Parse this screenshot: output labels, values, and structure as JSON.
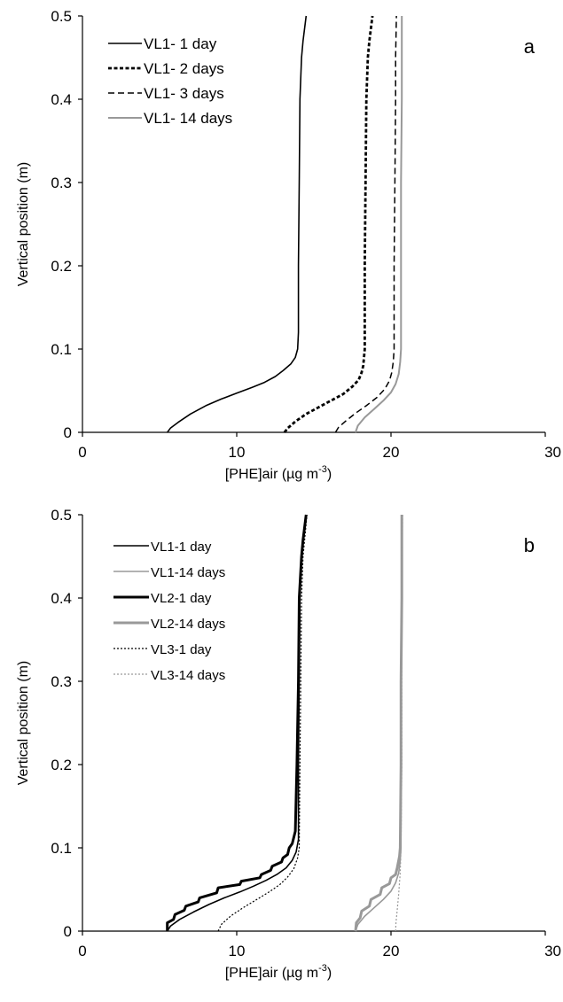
{
  "chart_data": [
    {
      "type": "line",
      "panel_label": "a",
      "xlabel": "[PHE]air (µg m",
      "xlabel_sup": "-3",
      "xlabel_end": ")",
      "ylabel": "Vertical position (m)",
      "xlim": [
        0,
        30
      ],
      "ylim": [
        0,
        0.5
      ],
      "xticks": [
        0,
        10,
        20,
        30
      ],
      "yticks": [
        0,
        0.1,
        0.2,
        0.3,
        0.4,
        0.5
      ],
      "ytick_labels": [
        "0",
        "0.1",
        "0.2",
        "0.3",
        "0.4",
        "0.5"
      ],
      "grid": false,
      "legend_position": "top-left",
      "series": [
        {
          "name": "VL1- 1 day",
          "color": "#000000",
          "style": "solid",
          "width": 1.6,
          "points": [
            [
              5.5,
              0
            ],
            [
              5.7,
              0.005
            ],
            [
              6.2,
              0.012
            ],
            [
              7.0,
              0.022
            ],
            [
              8.0,
              0.032
            ],
            [
              9.0,
              0.04
            ],
            [
              10.0,
              0.047
            ],
            [
              11.0,
              0.054
            ],
            [
              11.8,
              0.06
            ],
            [
              12.5,
              0.067
            ],
            [
              13.0,
              0.074
            ],
            [
              13.5,
              0.082
            ],
            [
              13.8,
              0.09
            ],
            [
              13.95,
              0.1
            ],
            [
              14.0,
              0.12
            ],
            [
              14.0,
              0.2
            ],
            [
              14.05,
              0.3
            ],
            [
              14.1,
              0.4
            ],
            [
              14.2,
              0.45
            ],
            [
              14.3,
              0.47
            ],
            [
              14.5,
              0.5
            ]
          ]
        },
        {
          "name": "VL1- 2 days",
          "color": "#000000",
          "style": "dotted-bold",
          "width": 2.8,
          "points": [
            [
              13.1,
              0
            ],
            [
              13.3,
              0.005
            ],
            [
              13.8,
              0.013
            ],
            [
              14.5,
              0.022
            ],
            [
              15.3,
              0.03
            ],
            [
              16.1,
              0.038
            ],
            [
              16.9,
              0.046
            ],
            [
              17.5,
              0.055
            ],
            [
              17.9,
              0.063
            ],
            [
              18.1,
              0.072
            ],
            [
              18.2,
              0.08
            ],
            [
              18.3,
              0.1
            ],
            [
              18.3,
              0.2
            ],
            [
              18.35,
              0.3
            ],
            [
              18.4,
              0.4
            ],
            [
              18.5,
              0.45
            ],
            [
              18.6,
              0.47
            ],
            [
              18.8,
              0.5
            ]
          ]
        },
        {
          "name": "VL1- 3 days",
          "color": "#000000",
          "style": "dashed",
          "width": 1.5,
          "points": [
            [
              16.4,
              0
            ],
            [
              16.6,
              0.006
            ],
            [
              17.1,
              0.014
            ],
            [
              17.7,
              0.023
            ],
            [
              18.4,
              0.032
            ],
            [
              19.1,
              0.042
            ],
            [
              19.6,
              0.052
            ],
            [
              19.9,
              0.062
            ],
            [
              20.05,
              0.072
            ],
            [
              20.15,
              0.085
            ],
            [
              20.2,
              0.1
            ],
            [
              20.2,
              0.2
            ],
            [
              20.25,
              0.3
            ],
            [
              20.3,
              0.4
            ],
            [
              20.3,
              0.45
            ],
            [
              20.35,
              0.5
            ]
          ]
        },
        {
          "name": "VL1- 14 days",
          "color": "#999999",
          "style": "solid",
          "width": 2,
          "points": [
            [
              17.7,
              0
            ],
            [
              17.85,
              0.008
            ],
            [
              18.3,
              0.018
            ],
            [
              18.9,
              0.028
            ],
            [
              19.5,
              0.038
            ],
            [
              20.0,
              0.048
            ],
            [
              20.3,
              0.058
            ],
            [
              20.5,
              0.07
            ],
            [
              20.6,
              0.085
            ],
            [
              20.65,
              0.1
            ],
            [
              20.65,
              0.2
            ],
            [
              20.65,
              0.3
            ],
            [
              20.7,
              0.4
            ],
            [
              20.7,
              0.5
            ]
          ]
        }
      ]
    },
    {
      "type": "line",
      "panel_label": "b",
      "xlabel": "[PHE]air (µg m",
      "xlabel_sup": "-3",
      "xlabel_end": ")",
      "ylabel": "Vertical position (m)",
      "xlim": [
        0,
        30
      ],
      "ylim": [
        0,
        0.5
      ],
      "xticks": [
        0,
        10,
        20,
        30
      ],
      "yticks": [
        0,
        0.1,
        0.2,
        0.3,
        0.4,
        0.5
      ],
      "ytick_labels": [
        "0",
        "0.1",
        "0.2",
        "0.3",
        "0.4",
        "0.5"
      ],
      "grid": false,
      "legend_position": "top-left",
      "series": [
        {
          "name": "VL1-1 day",
          "color": "#000000",
          "style": "solid",
          "width": 1.6,
          "points": [
            [
              5.5,
              0
            ],
            [
              5.7,
              0.006
            ],
            [
              6.3,
              0.014
            ],
            [
              7.2,
              0.023
            ],
            [
              8.2,
              0.032
            ],
            [
              9.2,
              0.04
            ],
            [
              10.2,
              0.047
            ],
            [
              11.1,
              0.054
            ],
            [
              11.9,
              0.061
            ],
            [
              12.6,
              0.068
            ],
            [
              13.2,
              0.076
            ],
            [
              13.6,
              0.085
            ],
            [
              13.85,
              0.095
            ],
            [
              14.0,
              0.11
            ],
            [
              14.0,
              0.2
            ],
            [
              14.05,
              0.3
            ],
            [
              14.1,
              0.4
            ],
            [
              14.2,
              0.45
            ],
            [
              14.3,
              0.47
            ],
            [
              14.5,
              0.5
            ]
          ]
        },
        {
          "name": "VL1-14 days",
          "color": "#999999",
          "style": "solid",
          "width": 1.6,
          "points": [
            [
              17.7,
              0
            ],
            [
              17.85,
              0.008
            ],
            [
              18.3,
              0.018
            ],
            [
              18.9,
              0.028
            ],
            [
              19.5,
              0.038
            ],
            [
              20.0,
              0.048
            ],
            [
              20.3,
              0.058
            ],
            [
              20.5,
              0.07
            ],
            [
              20.6,
              0.085
            ],
            [
              20.65,
              0.1
            ],
            [
              20.65,
              0.2
            ],
            [
              20.65,
              0.3
            ],
            [
              20.7,
              0.4
            ],
            [
              20.7,
              0.5
            ]
          ]
        },
        {
          "name": "VL2-1 day",
          "color": "#000000",
          "style": "solid",
          "width": 3,
          "points": [
            [
              5.5,
              0
            ],
            [
              5.5,
              0.01
            ],
            [
              5.9,
              0.014
            ],
            [
              6.0,
              0.02
            ],
            [
              6.6,
              0.025
            ],
            [
              6.7,
              0.03
            ],
            [
              7.5,
              0.035
            ],
            [
              7.6,
              0.04
            ],
            [
              8.7,
              0.046
            ],
            [
              8.8,
              0.052
            ],
            [
              10.2,
              0.056
            ],
            [
              10.3,
              0.06
            ],
            [
              11.5,
              0.064
            ],
            [
              11.6,
              0.068
            ],
            [
              12.2,
              0.073
            ],
            [
              12.3,
              0.078
            ],
            [
              12.9,
              0.083
            ],
            [
              13.0,
              0.088
            ],
            [
              13.3,
              0.092
            ],
            [
              13.4,
              0.1
            ],
            [
              13.6,
              0.105
            ],
            [
              13.8,
              0.12
            ],
            [
              13.9,
              0.2
            ],
            [
              14.0,
              0.3
            ],
            [
              14.05,
              0.4
            ],
            [
              14.2,
              0.45
            ],
            [
              14.3,
              0.47
            ],
            [
              14.5,
              0.5
            ]
          ]
        },
        {
          "name": "VL2-14 days",
          "color": "#999999",
          "style": "solid",
          "width": 3,
          "points": [
            [
              17.7,
              0
            ],
            [
              17.75,
              0.01
            ],
            [
              18.0,
              0.016
            ],
            [
              18.1,
              0.024
            ],
            [
              18.6,
              0.03
            ],
            [
              18.7,
              0.038
            ],
            [
              19.3,
              0.044
            ],
            [
              19.4,
              0.052
            ],
            [
              19.9,
              0.057
            ],
            [
              20.0,
              0.064
            ],
            [
              20.3,
              0.068
            ],
            [
              20.4,
              0.076
            ],
            [
              20.55,
              0.09
            ],
            [
              20.6,
              0.1
            ],
            [
              20.65,
              0.2
            ],
            [
              20.65,
              0.3
            ],
            [
              20.7,
              0.4
            ],
            [
              20.7,
              0.5
            ]
          ]
        },
        {
          "name": "VL3-1 day",
          "color": "#000000",
          "style": "dotted",
          "width": 1.2,
          "points": [
            [
              8.8,
              0
            ],
            [
              9.0,
              0.008
            ],
            [
              9.6,
              0.018
            ],
            [
              10.4,
              0.028
            ],
            [
              11.3,
              0.038
            ],
            [
              12.1,
              0.047
            ],
            [
              12.8,
              0.056
            ],
            [
              13.3,
              0.065
            ],
            [
              13.7,
              0.075
            ],
            [
              13.95,
              0.088
            ],
            [
              14.05,
              0.1
            ],
            [
              14.1,
              0.2
            ],
            [
              14.15,
              0.3
            ],
            [
              14.2,
              0.4
            ],
            [
              14.3,
              0.45
            ],
            [
              14.4,
              0.47
            ],
            [
              14.55,
              0.5
            ]
          ]
        },
        {
          "name": "VL3-14 days",
          "color": "#999999",
          "style": "dotted",
          "width": 1.2,
          "points": [
            [
              20.3,
              0
            ],
            [
              20.32,
              0.01
            ],
            [
              20.4,
              0.025
            ],
            [
              20.5,
              0.045
            ],
            [
              20.6,
              0.07
            ],
            [
              20.65,
              0.1
            ],
            [
              20.7,
              0.2
            ],
            [
              20.7,
              0.3
            ],
            [
              20.7,
              0.4
            ],
            [
              20.75,
              0.5
            ]
          ]
        }
      ]
    }
  ]
}
